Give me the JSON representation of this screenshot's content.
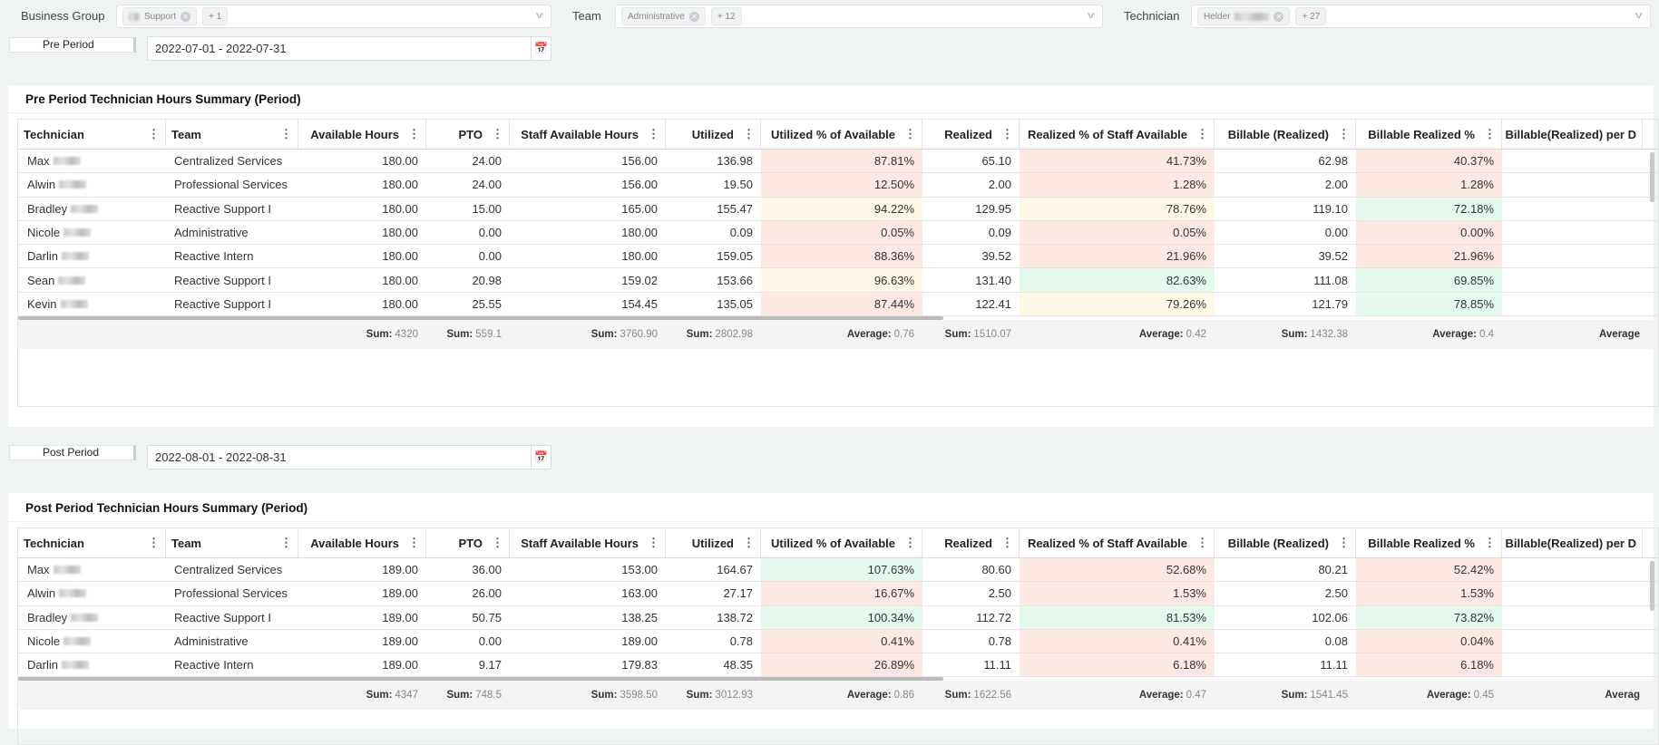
{
  "filters": {
    "business_group": {
      "label": "Business Group",
      "chip": "Support",
      "more": "+ 1"
    },
    "team": {
      "label": "Team",
      "chip": "Administrative",
      "more": "+ 12"
    },
    "technician": {
      "label": "Technician",
      "chip": "Helder",
      "more": "+ 27"
    }
  },
  "colors": {
    "red": "#fde8e3",
    "yellow": "#fff8e6",
    "green": "#e4f8ee",
    "background": "#f0f3f4"
  },
  "columns": [
    "Technician",
    "Team",
    "Available Hours",
    "PTO",
    "Staff Available Hours",
    "Utilized",
    "Utilized % of Available",
    "Realized",
    "Realized % of Staff Available",
    "Billable (Realized)",
    "Billable Realized %",
    "Billable(Realized) per D"
  ],
  "pre": {
    "period_label": "Pre Period",
    "date_range": "2022-07-01 - 2022-07-31",
    "title": "Pre Period Technician Hours Summary (Period)",
    "rows": [
      {
        "tech": "Max",
        "team": "Centralized Services",
        "avail": "180.00",
        "pto": "24.00",
        "staff": "156.00",
        "util": "136.98",
        "util_pct": "87.81%",
        "util_pct_status": "red",
        "realized": "65.10",
        "real_pct": "41.73%",
        "real_pct_status": "red",
        "billable": "62.98",
        "bill_pct": "40.37%",
        "bill_pct_status": "red"
      },
      {
        "tech": "Alwin",
        "team": "Professional Services",
        "avail": "180.00",
        "pto": "24.00",
        "staff": "156.00",
        "util": "19.50",
        "util_pct": "12.50%",
        "util_pct_status": "red",
        "realized": "2.00",
        "real_pct": "1.28%",
        "real_pct_status": "red",
        "billable": "2.00",
        "bill_pct": "1.28%",
        "bill_pct_status": "red"
      },
      {
        "tech": "Bradley",
        "team": "Reactive Support I",
        "avail": "180.00",
        "pto": "15.00",
        "staff": "165.00",
        "util": "155.47",
        "util_pct": "94.22%",
        "util_pct_status": "yellow",
        "realized": "129.95",
        "real_pct": "78.76%",
        "real_pct_status": "yellow",
        "billable": "119.10",
        "bill_pct": "72.18%",
        "bill_pct_status": "green"
      },
      {
        "tech": "Nicole",
        "team": "Administrative",
        "avail": "180.00",
        "pto": "0.00",
        "staff": "180.00",
        "util": "0.09",
        "util_pct": "0.05%",
        "util_pct_status": "red",
        "realized": "0.09",
        "real_pct": "0.05%",
        "real_pct_status": "red",
        "billable": "0.00",
        "bill_pct": "0.00%",
        "bill_pct_status": "red"
      },
      {
        "tech": "Darlin",
        "team": "Reactive Intern",
        "avail": "180.00",
        "pto": "0.00",
        "staff": "180.00",
        "util": "159.05",
        "util_pct": "88.36%",
        "util_pct_status": "red",
        "realized": "39.52",
        "real_pct": "21.96%",
        "real_pct_status": "red",
        "billable": "39.52",
        "bill_pct": "21.96%",
        "bill_pct_status": "red"
      },
      {
        "tech": "Sean",
        "team": "Reactive Support I",
        "avail": "180.00",
        "pto": "20.98",
        "staff": "159.02",
        "util": "153.66",
        "util_pct": "96.63%",
        "util_pct_status": "yellow",
        "realized": "131.40",
        "real_pct": "82.63%",
        "real_pct_status": "green",
        "billable": "111.08",
        "bill_pct": "69.85%",
        "bill_pct_status": "green"
      },
      {
        "tech": "Kevin",
        "team": "Reactive Support I",
        "avail": "180.00",
        "pto": "25.55",
        "staff": "154.45",
        "util": "135.05",
        "util_pct": "87.44%",
        "util_pct_status": "red",
        "realized": "122.41",
        "real_pct": "79.26%",
        "real_pct_status": "yellow",
        "billable": "121.79",
        "bill_pct": "78.85%",
        "bill_pct_status": "green"
      }
    ],
    "footer": [
      null,
      null,
      [
        "Sum:",
        "4320"
      ],
      [
        "Sum:",
        "559.1"
      ],
      [
        "Sum:",
        "3760.90"
      ],
      [
        "Sum:",
        "2802.98"
      ],
      [
        "Average:",
        "0.76"
      ],
      [
        "Sum:",
        "1510.07"
      ],
      [
        "Average:",
        "0.42"
      ],
      [
        "Sum:",
        "1432.38"
      ],
      [
        "Average:",
        "0.4"
      ],
      [
        "Average",
        ""
      ]
    ]
  },
  "post": {
    "period_label": "Post Period",
    "date_range": "2022-08-01 - 2022-08-31",
    "title": "Post Period Technician Hours Summary (Period)",
    "rows": [
      {
        "tech": "Max",
        "team": "Centralized Services",
        "avail": "189.00",
        "pto": "36.00",
        "staff": "153.00",
        "util": "164.67",
        "util_pct": "107.63%",
        "util_pct_status": "green",
        "realized": "80.60",
        "real_pct": "52.68%",
        "real_pct_status": "red",
        "billable": "80.21",
        "bill_pct": "52.42%",
        "bill_pct_status": "red"
      },
      {
        "tech": "Alwin",
        "team": "Professional Services",
        "avail": "189.00",
        "pto": "26.00",
        "staff": "163.00",
        "util": "27.17",
        "util_pct": "16.67%",
        "util_pct_status": "red",
        "realized": "2.50",
        "real_pct": "1.53%",
        "real_pct_status": "red",
        "billable": "2.50",
        "bill_pct": "1.53%",
        "bill_pct_status": "red"
      },
      {
        "tech": "Bradley",
        "team": "Reactive Support I",
        "avail": "189.00",
        "pto": "50.75",
        "staff": "138.25",
        "util": "138.72",
        "util_pct": "100.34%",
        "util_pct_status": "green",
        "realized": "112.72",
        "real_pct": "81.53%",
        "real_pct_status": "green",
        "billable": "102.06",
        "bill_pct": "73.82%",
        "bill_pct_status": "green"
      },
      {
        "tech": "Nicole",
        "team": "Administrative",
        "avail": "189.00",
        "pto": "0.00",
        "staff": "189.00",
        "util": "0.78",
        "util_pct": "0.41%",
        "util_pct_status": "red",
        "realized": "0.78",
        "real_pct": "0.41%",
        "real_pct_status": "red",
        "billable": "0.08",
        "bill_pct": "0.04%",
        "bill_pct_status": "red"
      },
      {
        "tech": "Darlin",
        "team": "Reactive Intern",
        "avail": "189.00",
        "pto": "9.17",
        "staff": "179.83",
        "util": "48.35",
        "util_pct": "26.89%",
        "util_pct_status": "red",
        "realized": "11.11",
        "real_pct": "6.18%",
        "real_pct_status": "red",
        "billable": "11.11",
        "bill_pct": "6.18%",
        "bill_pct_status": "red"
      }
    ],
    "footer": [
      null,
      null,
      [
        "Sum:",
        "4347"
      ],
      [
        "Sum:",
        "748.5"
      ],
      [
        "Sum:",
        "3598.50"
      ],
      [
        "Sum:",
        "3012.93"
      ],
      [
        "Average:",
        "0.86"
      ],
      [
        "Sum:",
        "1622.56"
      ],
      [
        "Average:",
        "0.47"
      ],
      [
        "Sum:",
        "1541.45"
      ],
      [
        "Average:",
        "0.45"
      ],
      [
        "Averag",
        ""
      ]
    ]
  }
}
